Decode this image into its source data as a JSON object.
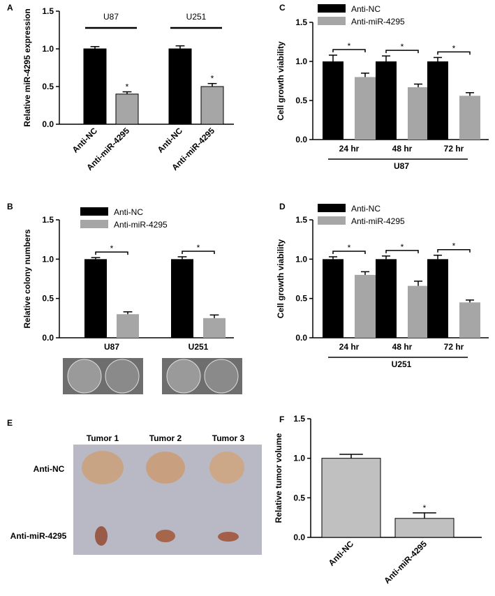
{
  "chart_data": [
    {
      "panel": "A",
      "type": "bar",
      "ylabel": "Relative miR-4295 expression",
      "categories": [
        "Anti-NC",
        "Anti-miR-4295",
        "Anti-NC",
        "Anti-miR-4295"
      ],
      "values": [
        1.0,
        0.4,
        1.0,
        0.5
      ],
      "errors": [
        0.03,
        0.03,
        0.04,
        0.04
      ],
      "colors": [
        "#000000",
        "#a6a6a6",
        "#000000",
        "#a6a6a6"
      ],
      "value_annotations": [
        null,
        "*",
        null,
        "*"
      ],
      "groups": [
        "U87",
        "U251"
      ],
      "ylim": [
        0,
        1.5
      ],
      "yticks": [
        {
          "value": 0,
          "label": "0.0"
        },
        {
          "value": 0.5,
          "label": "0.5"
        },
        {
          "value": 1,
          "label": "1.0"
        },
        {
          "value": 1.5,
          "label": "1.5"
        }
      ]
    },
    {
      "panel": "B",
      "type": "grouped-bar",
      "ylabel": "Relative  colony numbers",
      "categories": [
        "U87",
        "U251"
      ],
      "series": [
        {
          "name": "Anti-NC",
          "color": "#000000",
          "values": [
            1.0,
            1.0
          ],
          "errors": [
            0.02,
            0.03
          ]
        },
        {
          "name": "Anti-miR-4295",
          "color": "#a6a6a6",
          "values": [
            0.3,
            0.25
          ],
          "errors": [
            0.03,
            0.04
          ]
        }
      ],
      "significance": [
        "*",
        "*"
      ],
      "ylim": [
        0,
        1.5
      ],
      "yticks": [
        {
          "value": 0,
          "label": "0.0"
        },
        {
          "value": 0.5,
          "label": "0.5"
        },
        {
          "value": 1,
          "label": "1.0"
        },
        {
          "value": 1.5,
          "label": "1.5"
        }
      ]
    },
    {
      "panel": "C",
      "type": "grouped-bar",
      "ylabel": "Cell growth viability",
      "categories": [
        "24 hr",
        "48 hr",
        "72 hr"
      ],
      "group_label": "U87",
      "series": [
        {
          "name": "Anti-NC",
          "color": "#000000",
          "values": [
            1.0,
            1.0,
            1.0
          ],
          "errors": [
            0.08,
            0.07,
            0.05
          ]
        },
        {
          "name": "Anti-miR-4295",
          "color": "#a6a6a6",
          "values": [
            0.8,
            0.67,
            0.56
          ],
          "errors": [
            0.05,
            0.04,
            0.04
          ]
        }
      ],
      "significance": [
        "*",
        "*",
        "*"
      ],
      "ylim": [
        0,
        1.5
      ],
      "yticks": [
        {
          "value": 0,
          "label": "0.0"
        },
        {
          "value": 0.5,
          "label": "0.5"
        },
        {
          "value": 1,
          "label": "1.0"
        },
        {
          "value": 1.5,
          "label": "1.5"
        }
      ]
    },
    {
      "panel": "D",
      "type": "grouped-bar",
      "ylabel": "Cell growth viability",
      "categories": [
        "24 hr",
        "48 hr",
        "72 hr"
      ],
      "group_label": "U251",
      "series": [
        {
          "name": "Anti-NC",
          "color": "#000000",
          "values": [
            1.0,
            1.0,
            1.0
          ],
          "errors": [
            0.03,
            0.04,
            0.05
          ]
        },
        {
          "name": "Anti-miR-4295",
          "color": "#a6a6a6",
          "values": [
            0.8,
            0.66,
            0.45
          ],
          "errors": [
            0.04,
            0.06,
            0.03
          ]
        }
      ],
      "significance": [
        "*",
        "*",
        "*"
      ],
      "ylim": [
        0,
        1.5
      ],
      "yticks": [
        {
          "value": 0,
          "label": "0.0"
        },
        {
          "value": 0.5,
          "label": "0.5"
        },
        {
          "value": 1,
          "label": "1.0"
        },
        {
          "value": 1.5,
          "label": "1.5"
        }
      ]
    },
    {
      "panel": "F",
      "type": "bar",
      "ylabel": "Relative tumor volume",
      "categories": [
        "Anti-NC",
        "Anti-miR-4295"
      ],
      "values": [
        1.0,
        0.24
      ],
      "errors": [
        0.05,
        0.07
      ],
      "colors": [
        "#c0c0c0",
        "#c0c0c0"
      ],
      "value_annotations": [
        null,
        "*"
      ],
      "ylim": [
        0,
        1.5
      ],
      "yticks": [
        {
          "value": 0,
          "label": "0.0"
        },
        {
          "value": 0.5,
          "label": "0.5"
        },
        {
          "value": 1,
          "label": "1.0"
        },
        {
          "value": 1.5,
          "label": "1.5"
        }
      ]
    }
  ],
  "figure_e": {
    "panel": "E",
    "columns": [
      "Tumor 1",
      "Tumor 2",
      "Tumor 3"
    ],
    "rows": [
      "Anti-NC",
      "Anti-miR-4295"
    ]
  }
}
